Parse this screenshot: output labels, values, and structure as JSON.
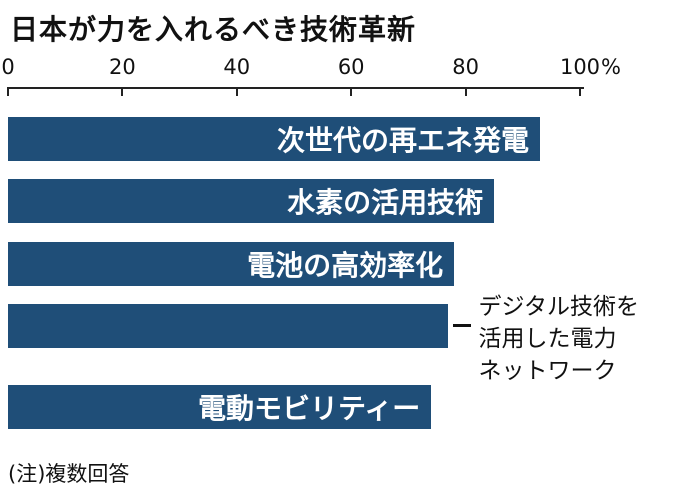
{
  "title": "日本が力を入れるべき技術革新",
  "note": "(注)複数回答",
  "chart_data": {
    "type": "bar",
    "orientation": "horizontal",
    "title": "日本が力を入れるべき技術革新",
    "categories": [
      "次世代の再エネ発電",
      "水素の活用技術",
      "電池の高効率化",
      "デジタル技術を活用した電力ネットワーク",
      "電動モビリティー"
    ],
    "values": [
      93,
      85,
      78,
      77,
      74
    ],
    "unit": "%",
    "xlim": [
      0,
      100
    ],
    "x_ticks": [
      0,
      20,
      40,
      60,
      80,
      100
    ],
    "bar_color": "#1f4e78",
    "inside_label_color": "#ffffff",
    "label_positions": [
      "inside",
      "inside",
      "inside",
      "outside",
      "inside"
    ],
    "outside_annotation": {
      "target_index": 3,
      "lines": [
        "デジタル技術を",
        "活用した電力",
        "ネットワーク"
      ]
    },
    "footnote": "(注)複数回答",
    "grid": false,
    "legend": false
  }
}
